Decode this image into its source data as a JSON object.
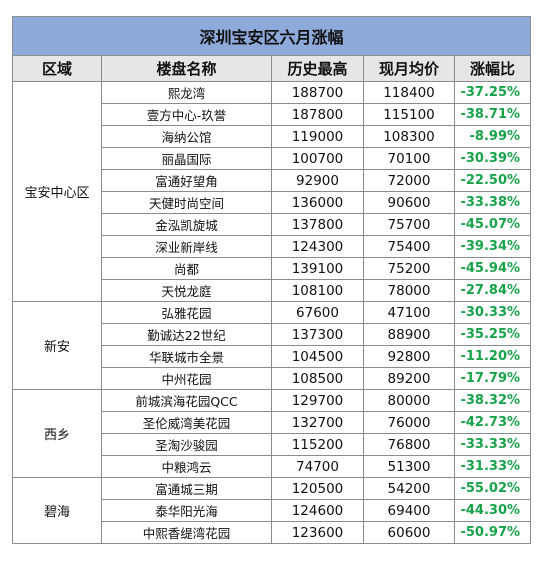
{
  "table": {
    "title": "深圳宝安区六月涨幅",
    "headers": [
      "区域",
      "楼盘名称",
      "历史最高",
      "现月均价",
      "涨幅比"
    ],
    "groups": [
      {
        "district": "宝安中心区",
        "rows": [
          {
            "project": "熙龙湾",
            "high": "188700",
            "price": "118400",
            "rate": "-37.25%"
          },
          {
            "project": "壹方中心-玖誉",
            "high": "187800",
            "price": "115100",
            "rate": "-38.71%"
          },
          {
            "project": "海纳公馆",
            "high": "119000",
            "price": "108300",
            "rate": "-8.99%"
          },
          {
            "project": "丽晶国际",
            "high": "100700",
            "price": "70100",
            "rate": "-30.39%"
          },
          {
            "project": "富通好望角",
            "high": "92900",
            "price": "72000",
            "rate": "-22.50%"
          },
          {
            "project": "天健时尚空间",
            "high": "136000",
            "price": "90600",
            "rate": "-33.38%"
          },
          {
            "project": "金泓凯旋城",
            "high": "137800",
            "price": "75700",
            "rate": "-45.07%"
          },
          {
            "project": "深业新岸线",
            "high": "124300",
            "price": "75400",
            "rate": "-39.34%"
          },
          {
            "project": "尚都",
            "high": "139100",
            "price": "75200",
            "rate": "-45.94%"
          },
          {
            "project": "天悦龙庭",
            "high": "108100",
            "price": "78000",
            "rate": "-27.84%"
          }
        ]
      },
      {
        "district": "新安",
        "rows": [
          {
            "project": "弘雅花园",
            "high": "67600",
            "price": "47100",
            "rate": "-30.33%"
          },
          {
            "project": "勤诚达22世纪",
            "high": "137300",
            "price": "88900",
            "rate": "-35.25%"
          },
          {
            "project": "华联城市全景",
            "high": "104500",
            "price": "92800",
            "rate": "-11.20%"
          },
          {
            "project": "中州花园",
            "high": "108500",
            "price": "89200",
            "rate": "-17.79%"
          }
        ]
      },
      {
        "district": "西乡",
        "rows": [
          {
            "project": "前城滨海花园QCC",
            "high": "129700",
            "price": "80000",
            "rate": "-38.32%"
          },
          {
            "project": "圣伦威湾美花园",
            "high": "132700",
            "price": "76000",
            "rate": "-42.73%"
          },
          {
            "project": "圣淘沙骏园",
            "high": "115200",
            "price": "76800",
            "rate": "-33.33%"
          },
          {
            "project": "中粮鸿云",
            "high": "74700",
            "price": "51300",
            "rate": "-31.33%"
          }
        ]
      },
      {
        "district": "碧海",
        "rows": [
          {
            "project": "富通城三期",
            "high": "120500",
            "price": "54200",
            "rate": "-55.02%"
          },
          {
            "project": "泰华阳光海",
            "high": "124600",
            "price": "69400",
            "rate": "-44.30%"
          },
          {
            "project": "中熙香缇湾花园",
            "high": "123600",
            "price": "60600",
            "rate": "-50.97%"
          }
        ]
      }
    ]
  },
  "colors": {
    "title_bg": "#8eaadb",
    "header_bg": "#e7e6e6",
    "rate_text": "#18a34a",
    "grid_line": "#8c8c8c"
  }
}
